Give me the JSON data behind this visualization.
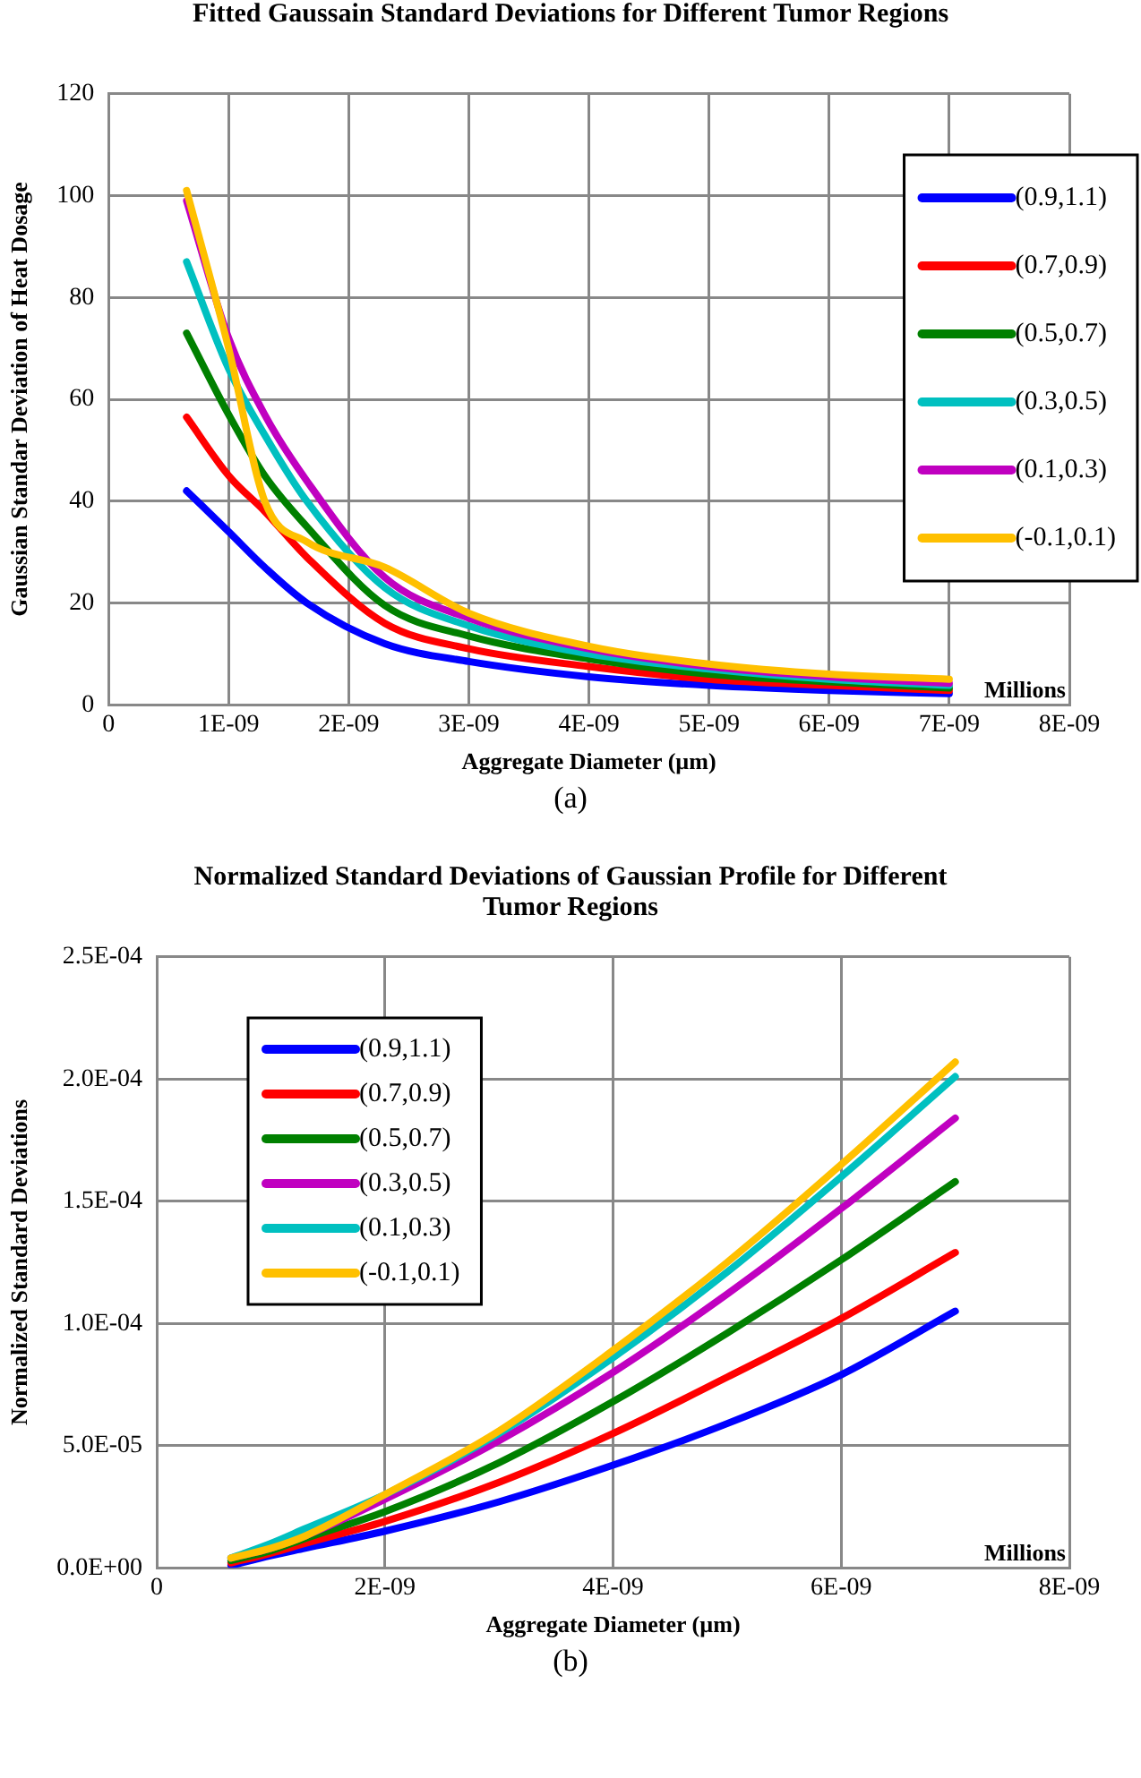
{
  "chart_data": [
    {
      "type": "line",
      "title": "Fitted Gaussain Standard Deviations for Different Tumor Regions",
      "xlabel": "Aggregate Diameter (µm)",
      "ylabel": "Gaussian Standar Deviation of Heat Dosage",
      "x": [
        6.5e-10,
        1e-09,
        1.3e-09,
        1.65e-09,
        2.3e-09,
        3e-09,
        4e-09,
        5e-09,
        6e-09,
        7e-09
      ],
      "series": [
        {
          "name": "(0.9,1.1)",
          "color": "#0000ff",
          "values": [
            42,
            34,
            27,
            20,
            12,
            8.5,
            5.5,
            3.8,
            2.8,
            2.2
          ]
        },
        {
          "name": "(0.7,0.9)",
          "color": "#ff0000",
          "values": [
            56.5,
            45,
            38,
            29,
            16,
            11,
            7.5,
            5,
            3.8,
            2.8
          ]
        },
        {
          "name": "(0.5,0.7)",
          "color": "#008000",
          "values": [
            73,
            57,
            45,
            35,
            19.5,
            13.5,
            9,
            6,
            4.5,
            3.3
          ]
        },
        {
          "name": "(0.3,0.5)",
          "color": "#00c0c0",
          "values": [
            87,
            66,
            53,
            40,
            23,
            15.5,
            10,
            7,
            5,
            3.8
          ]
        },
        {
          "name": "(0.1,0.3)",
          "color": "#c000c0",
          "values": [
            99,
            72,
            57,
            44,
            25,
            17,
            11,
            7.5,
            5.5,
            4.2
          ]
        },
        {
          "name": "(-0.1,0.1)",
          "color": "#ffc000",
          "values": [
            101,
            70,
            40,
            32,
            27,
            18,
            11.5,
            8,
            6,
            5
          ]
        }
      ],
      "xlim": [
        0,
        8e-09
      ],
      "xticks": [
        0,
        {
          "value": 1e-09,
          "label": "1E-09"
        },
        {
          "value": 2e-09,
          "label": "2E-09"
        },
        {
          "value": 3e-09,
          "label": "3E-09"
        },
        {
          "value": 4e-09,
          "label": "4E-09"
        },
        {
          "value": 5e-09,
          "label": "5E-09"
        },
        {
          "value": 6e-09,
          "label": "6E-09"
        },
        {
          "value": 7e-09,
          "label": "7E-09"
        },
        {
          "value": 8e-09,
          "label": "8E-09"
        }
      ],
      "ylim": [
        0,
        120
      ],
      "yticks": [
        0,
        20,
        40,
        60,
        80,
        100,
        120
      ],
      "grid": true,
      "legend": "right",
      "annotations": [
        "Millions",
        "(a)"
      ]
    },
    {
      "type": "line",
      "title": "Normalized Standard Deviations of Gaussian Profile for Different Tumor Regions",
      "xlabel": "Aggregate Diameter (µm)",
      "ylabel": "Normalized Standard Deviations",
      "x": [
        6.5e-10,
        1e-09,
        1.3e-09,
        2e-09,
        3e-09,
        4e-09,
        5e-09,
        6e-09,
        7e-09
      ],
      "series": [
        {
          "name": "(0.9,1.1)",
          "color": "#0000ff",
          "values": [
            1e-06,
            5e-06,
            8e-06,
            1.5e-05,
            2.7e-05,
            4.2e-05,
            5.9e-05,
            7.9e-05,
            0.000105
          ]
        },
        {
          "name": "(0.7,0.9)",
          "color": "#ff0000",
          "values": [
            2e-06,
            6e-06,
            1e-05,
            1.9e-05,
            3.5e-05,
            5.5e-05,
            7.8e-05,
            0.000102,
            0.000129
          ]
        },
        {
          "name": "(0.5,0.7)",
          "color": "#008000",
          "values": [
            3e-06,
            7e-06,
            1.2e-05,
            2.3e-05,
            4.3e-05,
            6.8e-05,
            9.6e-05,
            0.000126,
            0.000158
          ]
        },
        {
          "name": "(0.3,0.5)",
          "color": "#c000c0",
          "values": [
            4e-06,
            8e-06,
            1.3e-05,
            2.8e-05,
            5.2e-05,
            8e-05,
            0.000112,
            0.000147,
            0.000184
          ]
        },
        {
          "name": "(0.1,0.3)",
          "color": "#00c0c0",
          "values": [
            4e-06,
            1e-05,
            1.6e-05,
            3e-05,
            5.5e-05,
            8.6e-05,
            0.000121,
            0.00016,
            0.000201
          ]
        },
        {
          "name": "(-0.1,0.1)",
          "color": "#ffc000",
          "values": [
            4e-06,
            8e-06,
            1.3e-05,
            3e-05,
            5.6e-05,
            8.9e-05,
            0.000125,
            0.000165,
            0.000207
          ]
        }
      ],
      "xlim": [
        0,
        8e-09
      ],
      "xticks": [
        0,
        {
          "value": 2e-09,
          "label": "2E-09"
        },
        {
          "value": 4e-09,
          "label": "4E-09"
        },
        {
          "value": 6e-09,
          "label": "6E-09"
        },
        {
          "value": 8e-09,
          "label": "8E-09"
        }
      ],
      "ylim": [
        0,
        0.00025
      ],
      "yticks": [
        {
          "value": 0,
          "label": "0.0E+00"
        },
        {
          "value": 5e-05,
          "label": "5.0E-05"
        },
        {
          "value": 0.0001,
          "label": "1.0E-04"
        },
        {
          "value": 0.00015,
          "label": "1.5E-04"
        },
        {
          "value": 0.0002,
          "label": "2.0E-04"
        },
        {
          "value": 0.00025,
          "label": "2.5E-04"
        }
      ],
      "grid": true,
      "legend": "top left",
      "annotations": [
        "Millions",
        "(b)"
      ]
    }
  ]
}
